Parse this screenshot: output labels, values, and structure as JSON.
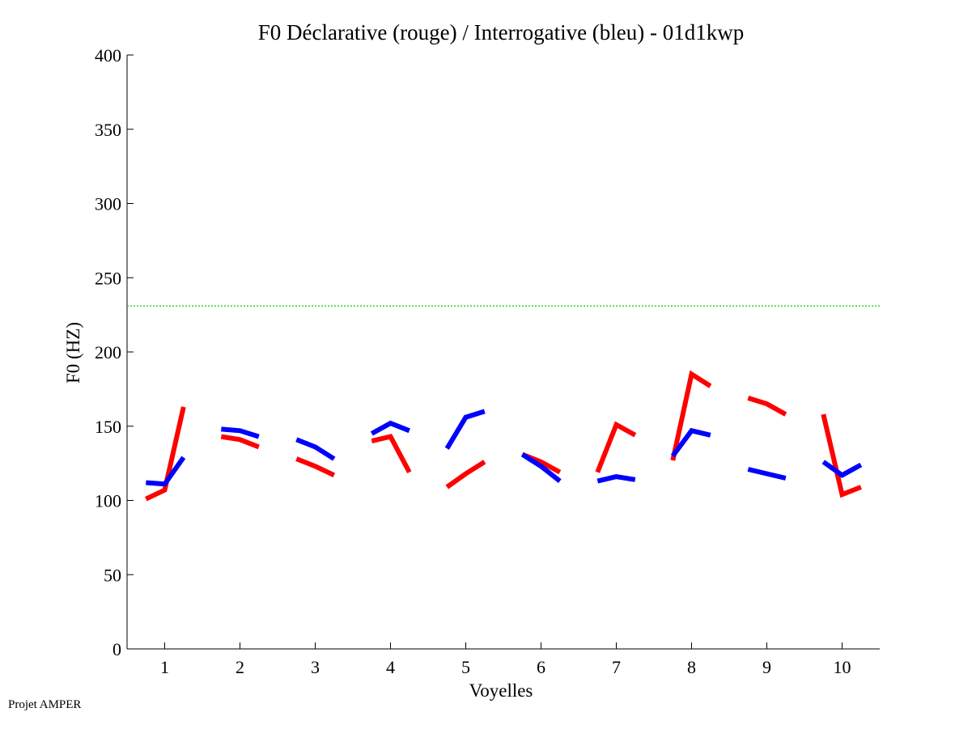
{
  "footer": "Projet AMPER",
  "chart_data": {
    "type": "line",
    "title": "F0 Déclarative (rouge) / Interrogative (bleu) - 01d1kwp",
    "xlabel": "Voyelles",
    "ylabel": "F0 (HZ)",
    "xlim": [
      0.5,
      10.5
    ],
    "ylim": [
      0,
      400
    ],
    "xticks": [
      1,
      2,
      3,
      4,
      5,
      6,
      7,
      8,
      9,
      10
    ],
    "yticks": [
      0,
      50,
      100,
      150,
      200,
      250,
      300,
      350,
      400
    ],
    "grid": false,
    "reference_line": {
      "y": 231,
      "color": "#00cc00",
      "style": "dotted"
    },
    "series": [
      {
        "name": "Déclarative",
        "color": "#ff0000",
        "segments": [
          {
            "vowel": 1,
            "x": [
              0.75,
              1.0,
              1.25
            ],
            "y": [
              101,
              107,
              163
            ]
          },
          {
            "vowel": 2,
            "x": [
              1.75,
              2.0,
              2.25
            ],
            "y": [
              143,
              141,
              136
            ]
          },
          {
            "vowel": 3,
            "x": [
              2.75,
              3.0,
              3.25
            ],
            "y": [
              128,
              123,
              117
            ]
          },
          {
            "vowel": 4,
            "x": [
              3.75,
              4.0,
              4.25
            ],
            "y": [
              140,
              143,
              119
            ]
          },
          {
            "vowel": 5,
            "x": [
              4.75,
              5.0,
              5.25
            ],
            "y": [
              109,
              118,
              126
            ]
          },
          {
            "vowel": 6,
            "x": [
              5.75,
              6.0,
              6.25
            ],
            "y": [
              131,
              126,
              119
            ]
          },
          {
            "vowel": 7,
            "x": [
              6.75,
              7.0,
              7.25
            ],
            "y": [
              119,
              151,
              144
            ]
          },
          {
            "vowel": 8,
            "x": [
              7.75,
              8.0,
              8.25
            ],
            "y": [
              127,
              185,
              177
            ]
          },
          {
            "vowel": 9,
            "x": [
              8.75,
              9.0,
              9.25
            ],
            "y": [
              169,
              165,
              158
            ]
          },
          {
            "vowel": 10,
            "x": [
              9.75,
              10.0,
              10.25
            ],
            "y": [
              158,
              104,
              109
            ]
          }
        ]
      },
      {
        "name": "Interrogative",
        "color": "#0000ff",
        "segments": [
          {
            "vowel": 1,
            "x": [
              0.75,
              1.0,
              1.25
            ],
            "y": [
              112,
              111,
              129
            ]
          },
          {
            "vowel": 2,
            "x": [
              1.75,
              2.0,
              2.25
            ],
            "y": [
              148,
              147,
              143
            ]
          },
          {
            "vowel": 3,
            "x": [
              2.75,
              3.0,
              3.25
            ],
            "y": [
              141,
              136,
              128
            ]
          },
          {
            "vowel": 4,
            "x": [
              3.75,
              4.0,
              4.25
            ],
            "y": [
              145,
              152,
              147
            ]
          },
          {
            "vowel": 5,
            "x": [
              4.75,
              5.0,
              5.25
            ],
            "y": [
              135,
              156,
              160
            ]
          },
          {
            "vowel": 6,
            "x": [
              5.75,
              6.0,
              6.25
            ],
            "y": [
              131,
              123,
              113
            ]
          },
          {
            "vowel": 7,
            "x": [
              6.75,
              7.0,
              7.25
            ],
            "y": [
              113,
              116,
              114
            ]
          },
          {
            "vowel": 8,
            "x": [
              7.75,
              8.0,
              8.25
            ],
            "y": [
              130,
              147,
              144
            ]
          },
          {
            "vowel": 9,
            "x": [
              8.75,
              9.0,
              9.25
            ],
            "y": [
              121,
              118,
              115
            ]
          },
          {
            "vowel": 10,
            "x": [
              9.75,
              10.0,
              10.25
            ],
            "y": [
              126,
              117,
              124
            ]
          }
        ]
      }
    ]
  }
}
